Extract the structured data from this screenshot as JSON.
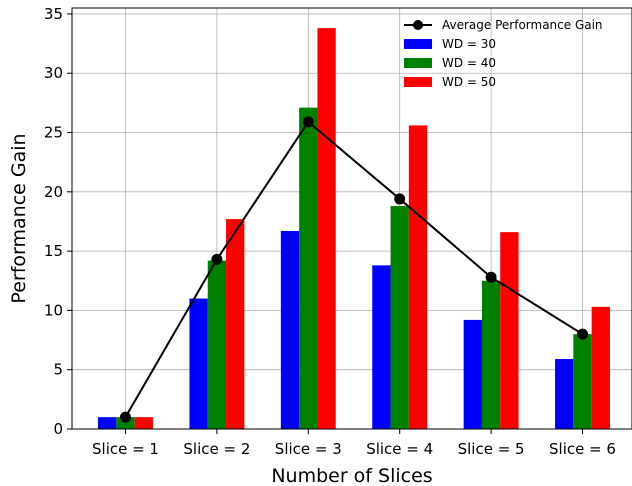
{
  "chart_data": {
    "type": "bar",
    "categories": [
      "Slice = 1",
      "Slice = 2",
      "Slice = 3",
      "Slice = 4",
      "Slice = 5",
      "Slice = 6"
    ],
    "series": [
      {
        "name": "WD = 30",
        "type": "bar",
        "color": "#0000ff",
        "values": [
          1.0,
          11.0,
          16.7,
          13.8,
          9.2,
          5.9
        ]
      },
      {
        "name": "WD = 40",
        "type": "bar",
        "color": "#008000",
        "values": [
          1.0,
          14.2,
          27.1,
          18.8,
          12.5,
          8.0
        ]
      },
      {
        "name": "WD = 50",
        "type": "bar",
        "color": "#ff0000",
        "values": [
          1.0,
          17.7,
          33.8,
          25.6,
          16.6,
          10.3
        ]
      },
      {
        "name": "Average Performance Gain",
        "type": "line",
        "color": "#000000",
        "marker": "circle",
        "values": [
          1.0,
          14.3,
          25.9,
          19.4,
          12.8,
          8.0
        ]
      }
    ],
    "xlabel": "Number of Slices",
    "ylabel": "Performance Gain",
    "ylim": [
      0,
      35.5
    ],
    "yticks": [
      0,
      5,
      10,
      15,
      20,
      25,
      30,
      35
    ],
    "grid": true,
    "legend_position": "top-right"
  }
}
